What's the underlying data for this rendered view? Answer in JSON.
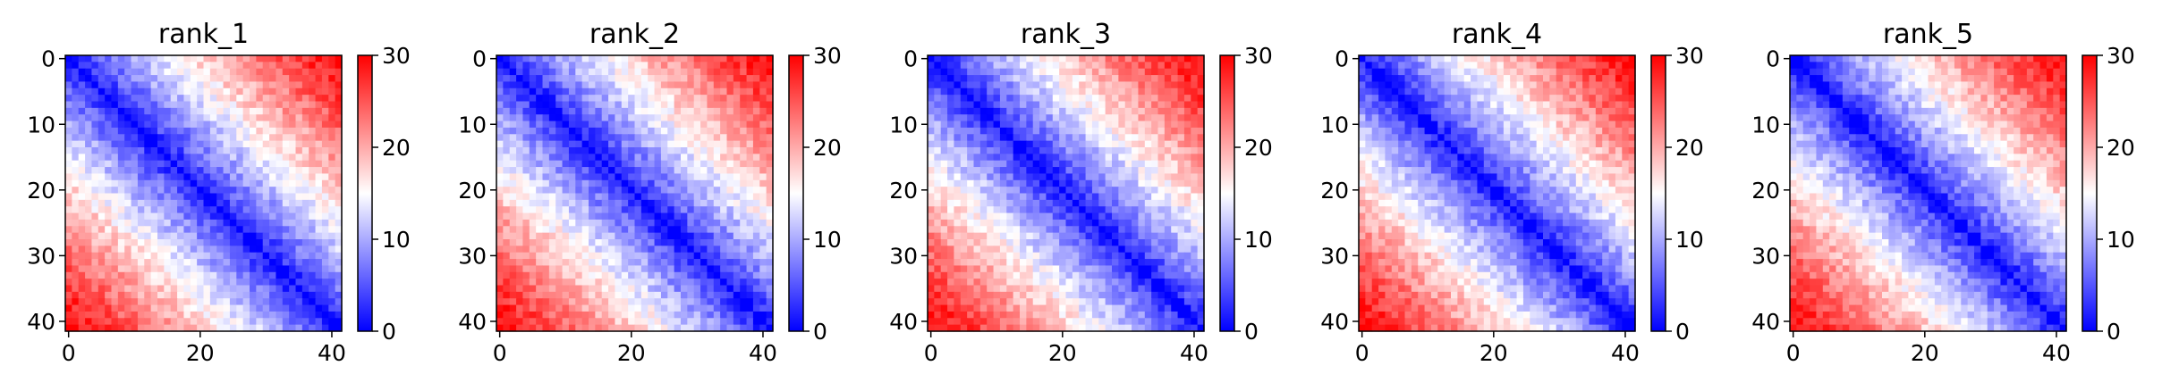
{
  "chart_data": [
    {
      "type": "heatmap",
      "title": "rank_1",
      "grid_size": 42,
      "xlim": [
        0,
        41
      ],
      "ylim": [
        41,
        0
      ],
      "xticks": [
        "0",
        "20",
        "40"
      ],
      "yticks": [
        "0",
        "10",
        "20",
        "30",
        "40"
      ],
      "colorbar": {
        "min": 0,
        "max": 30,
        "ticks": [
          "0",
          "10",
          "20",
          "30"
        ],
        "colormap": "bwr"
      },
      "diagonal_value": 0,
      "corner_value_estimate": 30,
      "pattern": "distance-dependent: values near 0 on the diagonal rising to ~30 at the far off-diagonal corners",
      "seed": 11
    },
    {
      "type": "heatmap",
      "title": "rank_2",
      "grid_size": 42,
      "xlim": [
        0,
        41
      ],
      "ylim": [
        41,
        0
      ],
      "xticks": [
        "0",
        "20",
        "40"
      ],
      "yticks": [
        "0",
        "10",
        "20",
        "30",
        "40"
      ],
      "colorbar": {
        "min": 0,
        "max": 30,
        "ticks": [
          "0",
          "10",
          "20",
          "30"
        ],
        "colormap": "bwr"
      },
      "diagonal_value": 0,
      "corner_value_estimate": 30,
      "pattern": "distance-dependent: values near 0 on the diagonal rising to ~30 at the far off-diagonal corners",
      "seed": 23
    },
    {
      "type": "heatmap",
      "title": "rank_3",
      "grid_size": 42,
      "xlim": [
        0,
        41
      ],
      "ylim": [
        41,
        0
      ],
      "xticks": [
        "0",
        "20",
        "40"
      ],
      "yticks": [
        "0",
        "10",
        "20",
        "30",
        "40"
      ],
      "colorbar": {
        "min": 0,
        "max": 30,
        "ticks": [
          "0",
          "10",
          "20",
          "30"
        ],
        "colormap": "bwr"
      },
      "diagonal_value": 0,
      "corner_value_estimate": 30,
      "pattern": "distance-dependent: values near 0 on the diagonal rising to ~30 at the far off-diagonal corners",
      "seed": 37
    },
    {
      "type": "heatmap",
      "title": "rank_4",
      "grid_size": 42,
      "xlim": [
        0,
        41
      ],
      "ylim": [
        41,
        0
      ],
      "xticks": [
        "0",
        "20",
        "40"
      ],
      "yticks": [
        "0",
        "10",
        "20",
        "30",
        "40"
      ],
      "colorbar": {
        "min": 0,
        "max": 30,
        "ticks": [
          "0",
          "10",
          "20",
          "30"
        ],
        "colormap": "bwr"
      },
      "diagonal_value": 0,
      "corner_value_estimate": 30,
      "pattern": "distance-dependent: values near 0 on the diagonal rising to ~30 at the far off-diagonal corners",
      "seed": 41
    },
    {
      "type": "heatmap",
      "title": "rank_5",
      "grid_size": 42,
      "xlim": [
        0,
        41
      ],
      "ylim": [
        41,
        0
      ],
      "xticks": [
        "0",
        "20",
        "40"
      ],
      "yticks": [
        "0",
        "10",
        "20",
        "30",
        "40"
      ],
      "colorbar": {
        "min": 0,
        "max": 30,
        "ticks": [
          "0",
          "10",
          "20",
          "30"
        ],
        "colormap": "bwr"
      },
      "diagonal_value": 0,
      "corner_value_estimate": 30,
      "pattern": "distance-dependent: values near 0 on the diagonal rising to ~30 at the far off-diagonal corners",
      "seed": 53
    }
  ]
}
